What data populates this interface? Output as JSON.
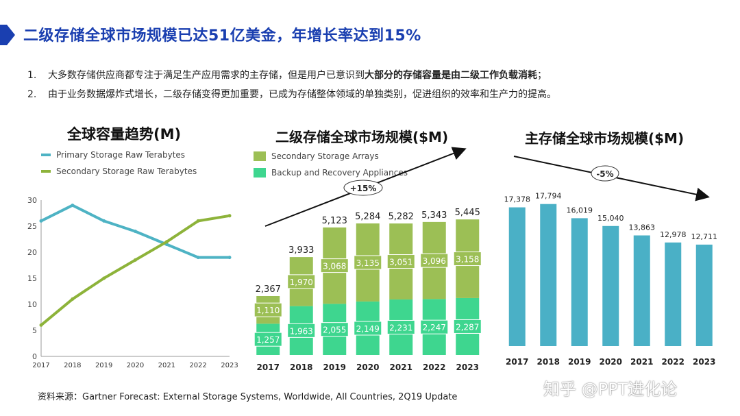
{
  "slide": {
    "title": "二级存储全球市场规模已达51亿美金，年增长率达到15%",
    "accent_color": "#1a3fb0",
    "bullets": [
      {
        "num": "1.",
        "text": "大多数存储供应商都专注于满足生产应用需求的主存储，但是用户已意识到",
        "bold": "大部分的存储容量是由二级工作负载消耗",
        "tail": "；"
      },
      {
        "num": "2.",
        "text": "由于业务数据爆炸式增长，二级存储变得更加重要，已成为存储整体领域的单独类别，促进组织的效率和生产力的提高。",
        "bold": "",
        "tail": ""
      }
    ],
    "source": "资料来源：Gartner Forecast: External Storage Systems, Worldwide, All Countries, 2Q19 Update",
    "watermark": "知乎 @PPT进化论"
  },
  "chart_data": [
    {
      "type": "line",
      "title": "全球容量趋势(M)",
      "x": [
        "2017",
        "2018",
        "2019",
        "2020",
        "2021",
        "2022",
        "2023"
      ],
      "series": [
        {
          "name": "Primary Storage Raw Terabytes",
          "color": "#4eb3c4",
          "values": [
            26,
            29,
            26,
            24,
            21.5,
            19,
            19
          ]
        },
        {
          "name": "Secondary Storage Raw Terabytes",
          "color": "#8db33a",
          "values": [
            6,
            11,
            15,
            18.5,
            22,
            26,
            27
          ]
        }
      ],
      "ylim": [
        0,
        30
      ],
      "yticks": [
        "0",
        "5",
        "10",
        "15",
        "20",
        "25",
        "30"
      ],
      "grid": false,
      "legend": "top"
    },
    {
      "type": "bar",
      "stacked": true,
      "title": "二级存储全球市场规模($M)",
      "categories": [
        "2017",
        "2018",
        "2019",
        "2020",
        "2021",
        "2022",
        "2023"
      ],
      "series": [
        {
          "name": "Backup and Recovery Appliances",
          "color": "#3ed68f",
          "values": [
            1257,
            1963,
            2055,
            2149,
            2231,
            2247,
            2287
          ],
          "labels": [
            "1,257",
            "1,963",
            "2,055",
            "2,149",
            "2,231",
            "2,247",
            "2,287"
          ]
        },
        {
          "name": "Secondary Storage Arrays",
          "color": "#9cbf55",
          "values": [
            1110,
            1970,
            3068,
            3135,
            3051,
            3096,
            3158
          ],
          "labels": [
            "1,110",
            "1,970",
            "3,068",
            "3,135",
            "3,051",
            "3,096",
            "3,158"
          ]
        }
      ],
      "totals": [
        "2,367",
        "3,933",
        "5,123",
        "5,284",
        "5,282",
        "5,343",
        "5,445"
      ],
      "growth_annotation": "+15%",
      "ylim": [
        0,
        6000
      ],
      "legend": "top"
    },
    {
      "type": "bar",
      "title": "主存储全球市场规模($M)",
      "categories": [
        "2017",
        "2018",
        "2019",
        "2020",
        "2021",
        "2022",
        "2023"
      ],
      "values": [
        17378,
        17794,
        16019,
        15040,
        13863,
        12978,
        12711
      ],
      "labels": [
        "17,378",
        "17,794",
        "16,019",
        "15,040",
        "13,863",
        "12,978",
        "12,711"
      ],
      "color": "#4ab0c6",
      "growth_annotation": "-5%",
      "ylim": [
        0,
        20000
      ]
    }
  ]
}
